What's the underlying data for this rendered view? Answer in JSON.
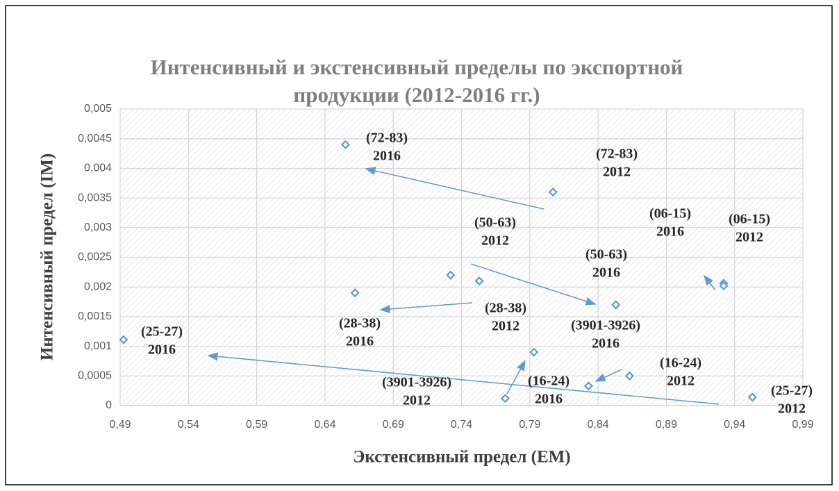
{
  "chart_data": {
    "type": "scatter",
    "title": [
      "Интенсивный и экстенсивный пределы по экспортной",
      "продукции (2012-2016 гг.)"
    ],
    "xlabel": "Экстенсивный предел (EM)",
    "ylabel": "Интенсивный предел (IM)",
    "series": [
      {
        "color": "#5b9bd5",
        "x": [
          0.655,
          0.807,
          0.732,
          0.753,
          0.853,
          0.662,
          0.932,
          0.932,
          0.772,
          0.793,
          0.863,
          0.833,
          0.953,
          0.4925
        ],
        "values": [
          0.0044,
          0.0036,
          0.0022,
          0.0021,
          0.0017,
          0.0019,
          0.00206,
          0.00202,
          0.00012,
          0.0009,
          0.0005,
          0.00033,
          0.00014,
          0.00111
        ],
        "point_labels": [
          [
            "(72-83)",
            "2016"
          ],
          [
            "(72-83)",
            "2012"
          ],
          [
            "(50-63)",
            "2012"
          ],
          [
            "(28-38)",
            "2012"
          ],
          [
            "(50-63)",
            "2016"
          ],
          [
            "(28-38)",
            "2016"
          ],
          [
            "(06-15)",
            "2012"
          ],
          [
            "(06-15)",
            "2016"
          ],
          [
            "(3901-3926)",
            "2012"
          ],
          [
            "(3901-3926)",
            "2016"
          ],
          [
            "(16-24)",
            "2012"
          ],
          [
            "(16-24)",
            "2016"
          ],
          [
            "(25-27)",
            "2012"
          ],
          [
            "(25-27)",
            "2016"
          ]
        ]
      }
    ],
    "xlim": [
      0.49,
      0.99
    ],
    "xticks": [
      {
        "value": 0.49,
        "label": "0,49"
      },
      {
        "value": 0.54,
        "label": "0,54"
      },
      {
        "value": 0.59,
        "label": "0,59"
      },
      {
        "value": 0.64,
        "label": "0,64"
      },
      {
        "value": 0.69,
        "label": "0,69"
      },
      {
        "value": 0.74,
        "label": "0,74"
      },
      {
        "value": 0.79,
        "label": "0,79"
      },
      {
        "value": 0.84,
        "label": "0,84"
      },
      {
        "value": 0.89,
        "label": "0,89"
      },
      {
        "value": 0.94,
        "label": "0,94"
      },
      {
        "value": 0.99,
        "label": "0,99"
      }
    ],
    "ylim": [
      0,
      0.005
    ],
    "yticks": [
      0,
      {
        "value": 0.0005,
        "label": "0,0005"
      },
      {
        "value": 0.001,
        "label": "0,001"
      },
      {
        "value": 0.0015,
        "label": "0,0015"
      },
      {
        "value": 0.002,
        "label": "0,002"
      },
      {
        "value": 0.0025,
        "label": "0,0025"
      },
      {
        "value": 0.003,
        "label": "0,003"
      },
      {
        "value": 0.0035,
        "label": "0,0035"
      },
      {
        "value": 0.004,
        "label": "0,004"
      },
      {
        "value": 0.0045,
        "label": "0,0045"
      },
      {
        "value": 0.005,
        "label": "0,005"
      }
    ],
    "grid": true
  }
}
